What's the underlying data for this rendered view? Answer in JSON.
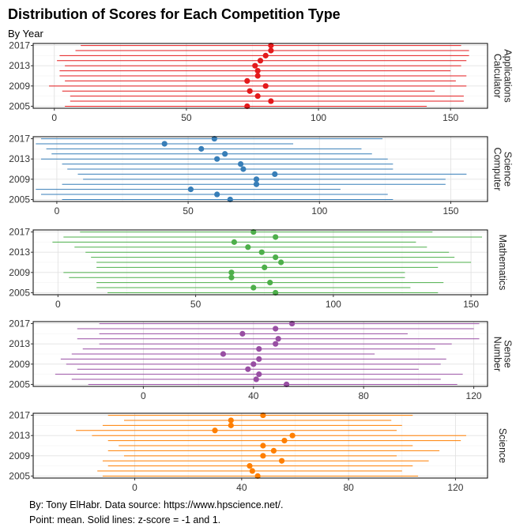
{
  "title": "Distribution of Scores for Each Competition Type",
  "subtitle": "By Year",
  "caption_line1": "By: Tony ElHabr. Data source: https://www.hpscience.net/.",
  "caption_line2": "Point: mean. Solid lines: z-score = -1 and 1.",
  "chart_data": [
    {
      "type": "dot-range",
      "panel": "Calculator Applications",
      "strip": [
        "Calculator",
        "Applications"
      ],
      "color": "#e41a1c",
      "xlim": [
        -8,
        164
      ],
      "xticks": [
        0,
        50,
        100,
        150
      ],
      "yticks": [
        2005,
        2009,
        2013,
        2017
      ],
      "years": [
        2017,
        2016,
        2015,
        2014,
        2013,
        2012,
        2011,
        2010,
        2009,
        2008,
        2007,
        2006,
        2005
      ],
      "mean": [
        82,
        82,
        80,
        78,
        76,
        77,
        77,
        73,
        80,
        74,
        77,
        82,
        73
      ],
      "low": [
        10,
        8,
        2,
        1,
        4,
        2,
        2,
        4,
        -2,
        3,
        6,
        6,
        4
      ],
      "high": [
        154,
        157,
        157,
        156,
        154,
        150,
        156,
        152,
        156,
        144,
        155,
        155,
        141
      ]
    },
    {
      "type": "dot-range",
      "panel": "Computer Science",
      "strip": [
        "Computer",
        "Science"
      ],
      "color": "#377eb8",
      "xlim": [
        -9,
        164
      ],
      "xticks": [
        0,
        50,
        100,
        150
      ],
      "yticks": [
        2005,
        2009,
        2013,
        2017
      ],
      "years": [
        2017,
        2016,
        2015,
        2014,
        2013,
        2012,
        2011,
        2010,
        2009,
        2008,
        2007,
        2006,
        2005
      ],
      "mean": [
        60,
        41,
        55,
        64,
        61,
        70,
        71,
        83,
        76,
        76,
        51,
        61,
        66
      ],
      "low": [
        -6,
        -8,
        -4,
        -2,
        -6,
        2,
        4,
        8,
        10,
        2,
        -8,
        -6,
        2
      ],
      "high": [
        124,
        90,
        116,
        120,
        126,
        128,
        128,
        156,
        148,
        148,
        108,
        126,
        128
      ]
    },
    {
      "type": "dot-range",
      "panel": "Mathematics",
      "strip": [
        "Mathematics"
      ],
      "color": "#4daf4a",
      "xlim": [
        -9,
        156
      ],
      "xticks": [
        0,
        50,
        100,
        150
      ],
      "yticks": [
        2005,
        2009,
        2013,
        2017
      ],
      "years": [
        2017,
        2016,
        2015,
        2014,
        2013,
        2012,
        2011,
        2010,
        2009,
        2008,
        2007,
        2006,
        2005
      ],
      "mean": [
        71,
        79,
        64,
        69,
        74,
        79,
        81,
        75,
        63,
        63,
        77,
        71,
        79
      ],
      "low": [
        8,
        2,
        -2,
        6,
        10,
        12,
        14,
        14,
        2,
        4,
        14,
        14,
        18
      ],
      "high": [
        136,
        154,
        130,
        134,
        142,
        144,
        150,
        138,
        126,
        126,
        140,
        128,
        138
      ]
    },
    {
      "type": "dot-range",
      "panel": "Number Sense",
      "strip": [
        "Number",
        "Sense"
      ],
      "color": "#984ea3",
      "xlim": [
        -40,
        125
      ],
      "xticks": [
        0,
        40,
        80,
        120
      ],
      "yticks": [
        2005,
        2009,
        2013,
        2017
      ],
      "years": [
        2017,
        2016,
        2015,
        2014,
        2013,
        2012,
        2011,
        2010,
        2009,
        2008,
        2007,
        2006,
        2005
      ],
      "mean": [
        54,
        48,
        36,
        49,
        48,
        42,
        29,
        42,
        40,
        38,
        42,
        41,
        52
      ],
      "low": [
        -16,
        -24,
        -16,
        -24,
        -16,
        -22,
        -26,
        -30,
        -28,
        -24,
        -32,
        -26,
        -20
      ],
      "high": [
        122,
        120,
        96,
        122,
        112,
        106,
        84,
        110,
        108,
        100,
        116,
        108,
        114
      ]
    },
    {
      "type": "dot-range",
      "panel": "Science",
      "strip": [
        "Science"
      ],
      "color": "#ff7f00",
      "xlim": [
        -38,
        132
      ],
      "xticks": [
        0,
        40,
        80,
        120
      ],
      "yticks": [
        2005,
        2009,
        2013,
        2017
      ],
      "years": [
        2017,
        2016,
        2015,
        2014,
        2013,
        2012,
        2011,
        2010,
        2009,
        2008,
        2007,
        2006,
        2005
      ],
      "mean": [
        48,
        36,
        36,
        30,
        59,
        56,
        48,
        52,
        48,
        55,
        43,
        44,
        46
      ],
      "low": [
        -10,
        -4,
        -12,
        -22,
        -16,
        -10,
        -6,
        -10,
        -4,
        -12,
        -10,
        -14,
        -12
      ],
      "high": [
        104,
        96,
        100,
        98,
        124,
        122,
        104,
        114,
        98,
        110,
        104,
        100,
        106
      ]
    }
  ]
}
